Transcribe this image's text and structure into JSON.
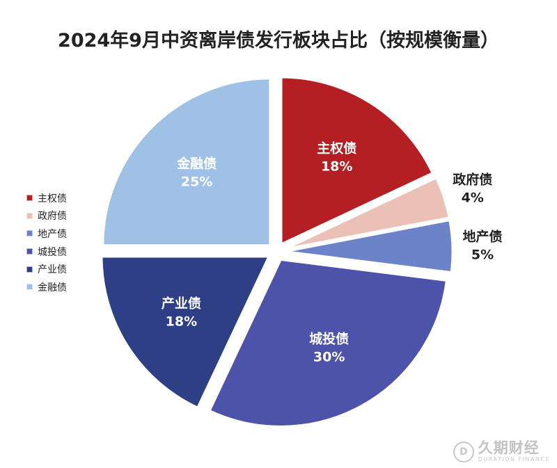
{
  "chart_data": {
    "type": "pie",
    "title": "2024年9月中资离岸债发行板块占比（按规模衡量）",
    "slices": [
      {
        "name": "主权债",
        "value": 18,
        "label": "18%",
        "color": "#B31F22"
      },
      {
        "name": "政府债",
        "value": 4,
        "label": "4%",
        "color": "#EBC0B6"
      },
      {
        "name": "地产债",
        "value": 5,
        "label": "5%",
        "color": "#6C83C9"
      },
      {
        "name": "城投债",
        "value": 30,
        "label": "30%",
        "color": "#4E53AA"
      },
      {
        "name": "产业债",
        "value": 18,
        "label": "18%",
        "color": "#2E3F86"
      },
      {
        "name": "金融债",
        "value": 25,
        "label": "25%",
        "color": "#9FC1E6"
      }
    ],
    "legend": {
      "position": "left"
    }
  },
  "watermark": {
    "logo": "D",
    "name": "久期财经",
    "subtitle": "DURATION FINANCE"
  }
}
